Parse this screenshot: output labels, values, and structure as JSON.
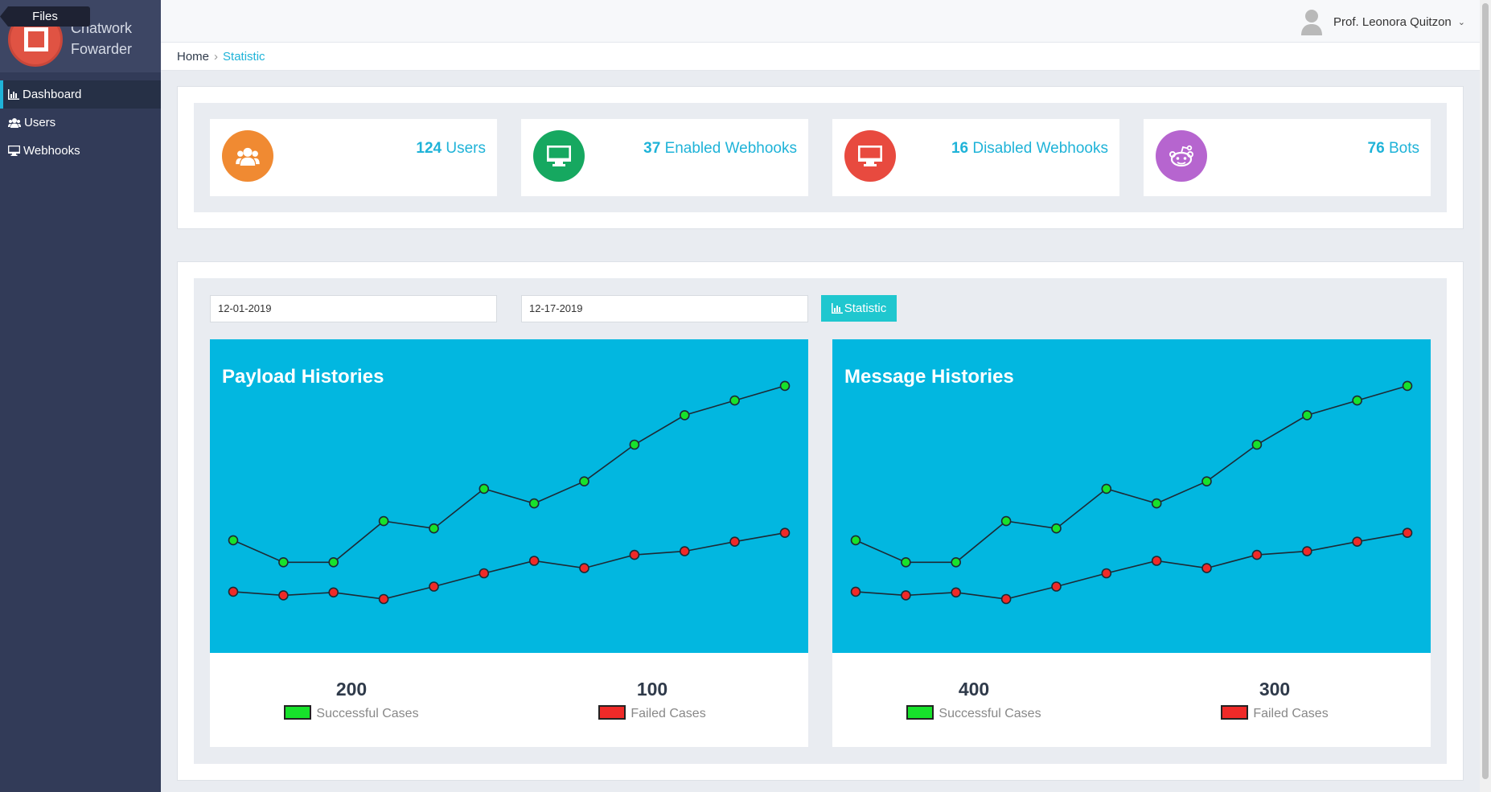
{
  "tooltip": "Files",
  "brand": {
    "line1": "Chatwork",
    "line2": "Fowarder"
  },
  "nav": [
    {
      "label": "Dashboard",
      "icon": "bar-chart-icon",
      "active": true
    },
    {
      "label": "Users",
      "icon": "users-icon",
      "active": false
    },
    {
      "label": "Webhooks",
      "icon": "desktop-icon",
      "active": false
    }
  ],
  "header": {
    "user_name": "Prof. Leonora Quitzon"
  },
  "breadcrumb": {
    "home": "Home",
    "separator": "›",
    "current": "Statistic"
  },
  "stats": [
    {
      "count": "124",
      "label": "Users",
      "icon": "users-icon",
      "color": "#f08a32"
    },
    {
      "count": "37",
      "label": "Enabled Webhooks",
      "icon": "desktop-icon",
      "color": "#16a860"
    },
    {
      "count": "16",
      "label": "Disabled Webhooks",
      "icon": "desktop-icon",
      "color": "#e84a3f"
    },
    {
      "count": "76",
      "label": "Bots",
      "icon": "reddit-icon",
      "color": "#b665cf"
    }
  ],
  "filters": {
    "start_date": "12-01-2019",
    "end_date": "12-17-2019",
    "button_label": "Statistic"
  },
  "colors": {
    "accent": "#1fb3d8",
    "chart_bg": "#02b7e0",
    "success": "#17e22b",
    "failed": "#ef2a28"
  },
  "charts": [
    {
      "title": "Payload Histories",
      "success_total": "200",
      "success_label": "Successful Cases",
      "failed_total": "100",
      "failed_label": "Failed Cases"
    },
    {
      "title": "Message Histories",
      "success_total": "400",
      "success_label": "Successful Cases",
      "failed_total": "300",
      "failed_label": "Failed Cases"
    }
  ],
  "chart_data": [
    {
      "type": "line",
      "title": "Payload Histories",
      "x": [
        1,
        2,
        3,
        4,
        5,
        6,
        7,
        8,
        9,
        10,
        11,
        12
      ],
      "series": [
        {
          "name": "Successful Cases",
          "values": [
            11,
            8,
            8,
            13.6,
            12.6,
            18,
            16,
            19,
            24,
            28,
            30,
            32
          ]
        },
        {
          "name": "Failed Cases",
          "values": [
            4,
            3.5,
            3.9,
            3,
            4.7,
            6.5,
            8.2,
            7.2,
            9,
            9.5,
            10.8,
            12
          ]
        }
      ],
      "ylim": [
        -0.5,
        34.5
      ],
      "grid": false
    },
    {
      "type": "line",
      "title": "Message Histories",
      "x": [
        1,
        2,
        3,
        4,
        5,
        6,
        7,
        8,
        9,
        10,
        11,
        12
      ],
      "series": [
        {
          "name": "Successful Cases",
          "values": [
            11,
            8,
            8,
            13.6,
            12.6,
            18,
            16,
            19,
            24,
            28,
            30,
            32
          ]
        },
        {
          "name": "Failed Cases",
          "values": [
            4,
            3.5,
            3.9,
            3,
            4.7,
            6.5,
            8.2,
            7.2,
            9,
            9.5,
            10.8,
            12
          ]
        }
      ],
      "ylim": [
        -0.5,
        34.5
      ],
      "grid": false
    }
  ]
}
